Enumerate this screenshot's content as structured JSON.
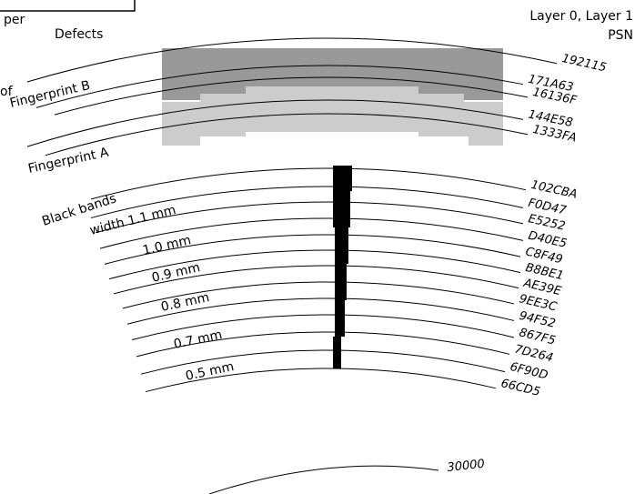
{
  "header": {
    "corner": "per",
    "defects": "Defects",
    "left_note": "of",
    "layers": "Layer 0, Layer 1",
    "psn": "PSN"
  },
  "fingerprints": {
    "b": "Fingerprint B",
    "a": "Fingerprint A"
  },
  "bands": {
    "title": "Black bands",
    "widths": [
      "width 1.1 mm",
      "1.0 mm",
      "0.9 mm",
      "0.8 mm",
      "0.7 mm",
      "0.5 mm"
    ]
  },
  "psn_labels": [
    "192115",
    "171A63",
    "16136F",
    "144E58",
    "1333FA",
    "102CBA",
    "F0D47",
    "E5252",
    "D40E5",
    "C8F49",
    "B8BE1",
    "AE39E",
    "9EE3C",
    "94F52",
    "867F5",
    "7D264",
    "6F90D",
    "66CD5"
  ],
  "radius_label": "30000"
}
